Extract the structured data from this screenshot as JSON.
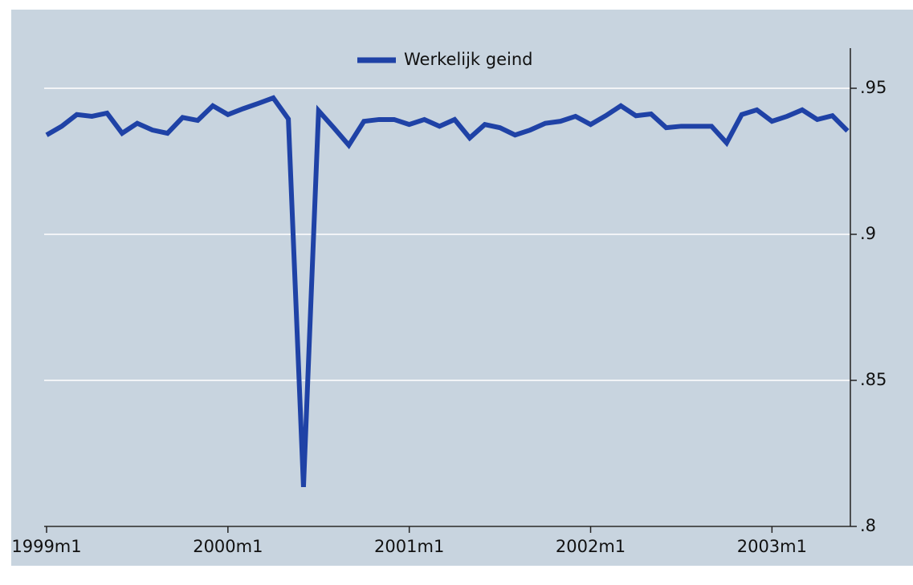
{
  "chart_data": {
    "type": "line",
    "categories": [
      "1999m1",
      null,
      null,
      null,
      null,
      null,
      null,
      null,
      null,
      null,
      null,
      null,
      "2000m1",
      null,
      null,
      null,
      null,
      null,
      null,
      null,
      null,
      null,
      null,
      null,
      "2001m1",
      null,
      null,
      null,
      null,
      null,
      null,
      null,
      null,
      null,
      null,
      null,
      "2002m1",
      null,
      null,
      null,
      null,
      null,
      null,
      null,
      null,
      null,
      null,
      null,
      "2003m1",
      null,
      null,
      null,
      null,
      null
    ],
    "series": [
      {
        "name": "Werkelijk geind",
        "color": "#1f42a6",
        "values": [
          0.934,
          0.937,
          0.941,
          0.9404,
          0.9415,
          0.9346,
          0.938,
          0.9357,
          0.9346,
          0.94,
          0.939,
          0.944,
          0.941,
          0.943,
          0.9448,
          0.9467,
          0.9395,
          0.8135,
          0.9423,
          0.9365,
          0.9305,
          0.9387,
          0.9393,
          0.9393,
          0.9376,
          0.9393,
          0.937,
          0.9393,
          0.933,
          0.9376,
          0.9365,
          0.934,
          0.9357,
          0.938,
          0.9387,
          0.9404,
          0.9376,
          0.9406,
          0.944,
          0.9406,
          0.9412,
          0.9365,
          0.937,
          0.937,
          0.937,
          0.9313,
          0.941,
          0.9426,
          0.9387,
          0.9404,
          0.9426,
          0.9393,
          0.9406,
          0.9354
        ]
      }
    ],
    "ylim": [
      0.8,
      0.95
    ],
    "yticks": [
      {
        "value": 0.8,
        "label": ".8"
      },
      {
        "value": 0.85,
        "label": ".85"
      },
      {
        "value": 0.9,
        "label": ".9"
      },
      {
        "value": 0.95,
        "label": ".95"
      }
    ],
    "grid": true,
    "legend": "top"
  }
}
